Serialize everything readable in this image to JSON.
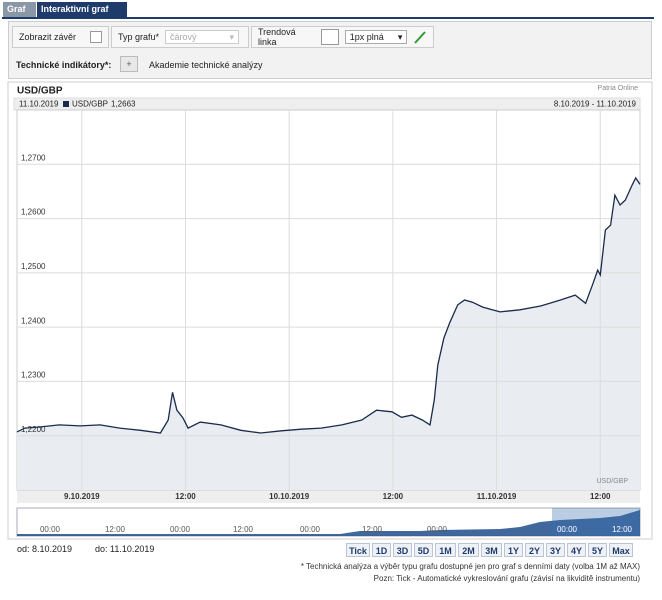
{
  "tabs": [
    "Graf",
    "Interaktivní graf"
  ],
  "toolbar": {
    "show_close": "Zobrazit závěr",
    "chart_type_label": "Typ grafu*",
    "chart_type_value": "čárový",
    "trend_label": "Trendová linka",
    "trend_value": "1px plná",
    "indicators_label": "Technické indikátory*:",
    "academy": "Akademie technické analýzy"
  },
  "chart_data": {
    "type": "line",
    "title": "USD/GBP",
    "source": "Patria Online",
    "date": "11.10.2019",
    "last_label": "1,2663",
    "range": "8.10.2019 - 11.10.2019",
    "watermark": "USD/GBP",
    "x": [
      16.5,
      17.4,
      19.1,
      21.4,
      23.8,
      26.1,
      28.4,
      30.8,
      33.1,
      34.0,
      34.5,
      35.0,
      35.7,
      36.3,
      37.7,
      40.1,
      42.4,
      44.7,
      47.1,
      49.4,
      51.7,
      54.1,
      56.4,
      58.1,
      59.9,
      61.0,
      62.2,
      63.4,
      64.3,
      64.8,
      65.2,
      65.9,
      66.6,
      67.5,
      68.3,
      69.2,
      70.4,
      71.5,
      72.4,
      74.7,
      77.1,
      79.4,
      81.1,
      82.3,
      83.1,
      83.7,
      84.0,
      84.6,
      85.2,
      85.7,
      86.3,
      86.9,
      87.7,
      88.1,
      88.6
    ],
    "series": [
      {
        "name": "USD/GBP",
        "color": "#1b2b4b",
        "fill": "#e9edf2",
        "values": [
          1.2207,
          1.2214,
          1.2216,
          1.222,
          1.2218,
          1.222,
          1.2214,
          1.221,
          1.2205,
          1.2229,
          1.228,
          1.2247,
          1.2233,
          1.2214,
          1.2225,
          1.222,
          1.221,
          1.2205,
          1.2209,
          1.2212,
          1.2214,
          1.222,
          1.2229,
          1.2247,
          1.2244,
          1.2234,
          1.2238,
          1.2229,
          1.222,
          1.2266,
          1.233,
          1.238,
          1.2409,
          1.2441,
          1.245,
          1.2446,
          1.2437,
          1.2432,
          1.2428,
          1.2432,
          1.2439,
          1.245,
          1.2459,
          1.2444,
          1.2478,
          1.2505,
          1.2496,
          1.2579,
          1.2588,
          1.2643,
          1.2625,
          1.2634,
          1.2662,
          1.2675,
          1.2663
        ]
      }
    ],
    "xlim": [
      16.5,
      88.6
    ],
    "xticks": [
      {
        "value": 24,
        "label": "9.10.2019"
      },
      {
        "value": 36,
        "label": "12:00"
      },
      {
        "value": 48,
        "label": "10.10.2019"
      },
      {
        "value": 60,
        "label": "12:00"
      },
      {
        "value": 72,
        "label": "11.10.2019"
      },
      {
        "value": 84,
        "label": "12:00"
      }
    ],
    "ylim": [
      1.21,
      1.28
    ],
    "yticks": [
      {
        "value": 1.22,
        "label": "1,2200"
      },
      {
        "value": 1.23,
        "label": "1,2300"
      },
      {
        "value": 1.24,
        "label": "1,2400"
      },
      {
        "value": 1.25,
        "label": "1,2500"
      },
      {
        "value": 1.26,
        "label": "1,2600"
      },
      {
        "value": 1.27,
        "label": "1,2700"
      }
    ],
    "grid": true
  },
  "navigator": [
    "00:00",
    "12:00",
    "00:00",
    "12:00",
    "00:00",
    "12:00",
    "00:00",
    "00:00",
    "12:00"
  ],
  "footer": {
    "from": "od: 8.10.2019",
    "to": "do: 11.10.2019",
    "buttons": [
      "Tick",
      "1D",
      "3D",
      "5D",
      "1M",
      "2M",
      "3M",
      "1Y",
      "2Y",
      "3Y",
      "4Y",
      "5Y",
      "Max"
    ],
    "note1": "* Technická analýza a výběr typu grafu dostupné jen pro graf s denními daty (volba 1M až MAX)",
    "note2": "Pozn: Tick - Automatické vykreslování grafu (závisí na likviditě instrumentu)"
  }
}
